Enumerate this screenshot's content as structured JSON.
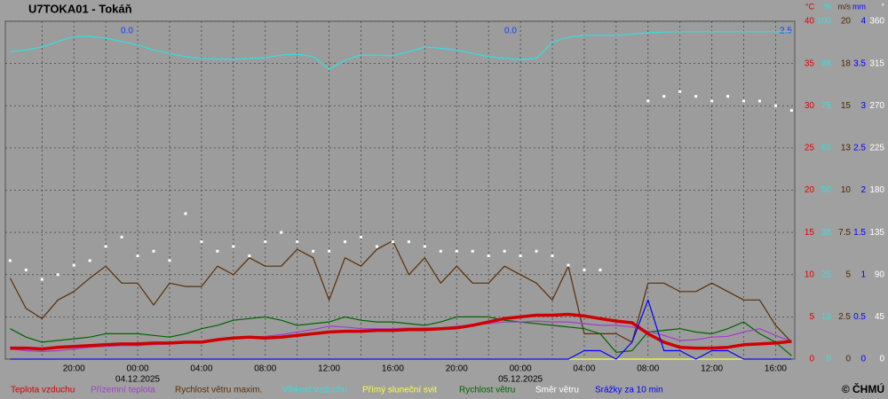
{
  "chart_data": {
    "type": "line",
    "title": "U7TOKA01 - Tokáň",
    "credit": "© ČHMÚ",
    "annotations": [
      "0.0",
      "0.0",
      "2.5"
    ],
    "xlim": [
      -8.3,
      41.2
    ],
    "xticks": [
      {
        "value": -4,
        "label": "20:00"
      },
      {
        "value": 0,
        "label": "00:00"
      },
      {
        "value": 4,
        "label": "04:00"
      },
      {
        "value": 8,
        "label": "08:00"
      },
      {
        "value": 12,
        "label": "12:00"
      },
      {
        "value": 16,
        "label": "16:00"
      },
      {
        "value": 20,
        "label": "20:00"
      },
      {
        "value": 24,
        "label": "00:00"
      },
      {
        "value": 28,
        "label": "04:00"
      },
      {
        "value": 32,
        "label": "08:00"
      },
      {
        "value": 36,
        "label": "12:00"
      },
      {
        "value": 40,
        "label": "16:00"
      }
    ],
    "xminorticks": [
      -6,
      -2,
      2,
      6,
      10,
      14,
      18,
      22,
      26,
      30,
      34,
      38
    ],
    "date_labels": [
      {
        "value": 0,
        "label": "04.12.2025"
      },
      {
        "value": 24,
        "label": "05.12.2025"
      }
    ],
    "grid": true,
    "axes": [
      {
        "unit": "°C",
        "color": "#e00000",
        "lim": [
          0,
          40
        ],
        "ticks": [
          0,
          5,
          10,
          15,
          20,
          25,
          30,
          35,
          40
        ]
      },
      {
        "unit": "%",
        "color": "#30e0e0",
        "lim": [
          0,
          100
        ],
        "ticks": [
          0,
          {
            "value": 12.5,
            "label": "13"
          },
          25,
          {
            "value": 37.5,
            "label": "38"
          },
          50,
          {
            "value": 62.5,
            "label": "63"
          },
          75,
          {
            "value": 87.5,
            "label": "88"
          },
          100
        ]
      },
      {
        "unit": "m/s",
        "color": "#4a2600",
        "lim": [
          0,
          20
        ],
        "ticks": [
          0,
          2.5,
          5,
          7.5,
          10,
          {
            "value": 12.5,
            "label": "13"
          },
          15,
          {
            "value": 17.5,
            "label": "18"
          },
          20
        ]
      },
      {
        "unit": "mm",
        "color": "#0000ff",
        "lim": [
          0,
          4
        ],
        "ticks": [
          0,
          0.5,
          1,
          1.5,
          2,
          2.5,
          3,
          3.5,
          4
        ]
      },
      {
        "unit": "°",
        "color": "#ffffff",
        "lim": [
          0,
          360
        ],
        "ticks": [
          0,
          45,
          90,
          135,
          180,
          225,
          270,
          315,
          360
        ]
      }
    ],
    "x": [
      -8,
      -7,
      -6,
      -5,
      -4,
      -3,
      -2,
      -1,
      0,
      1,
      2,
      3,
      4,
      5,
      6,
      7,
      8,
      9,
      10,
      11,
      12,
      13,
      14,
      15,
      16,
      17,
      18,
      19,
      20,
      21,
      22,
      23,
      24,
      25,
      26,
      27,
      28,
      29,
      30,
      31,
      32,
      33,
      34,
      35,
      36,
      37,
      38,
      39,
      40,
      41
    ],
    "series": [
      {
        "name": "Teplota vzduchu",
        "color": "#d00000",
        "axis": 0,
        "style": "thick",
        "values": [
          1.3,
          1.3,
          1.2,
          1.4,
          1.5,
          1.6,
          1.7,
          1.8,
          1.8,
          1.9,
          1.9,
          2.0,
          2.0,
          2.3,
          2.5,
          2.6,
          2.5,
          2.6,
          2.8,
          3.0,
          3.2,
          3.3,
          3.3,
          3.4,
          3.4,
          3.5,
          3.5,
          3.6,
          3.7,
          4.0,
          4.4,
          4.8,
          5.0,
          5.2,
          5.2,
          5.3,
          5.1,
          4.8,
          4.5,
          4.3,
          3.0,
          2.0,
          1.4,
          1.3,
          1.3,
          1.4,
          1.7,
          1.8,
          1.9,
          2.1
        ]
      },
      {
        "name": "Přízemní teplota",
        "color": "#a040c8",
        "axis": 0,
        "style": "line",
        "values": [
          1.2,
          1.0,
          0.9,
          1.0,
          1.2,
          1.4,
          1.5,
          1.6,
          1.6,
          1.7,
          1.8,
          1.9,
          2.0,
          2.3,
          2.5,
          2.6,
          2.7,
          2.9,
          3.2,
          3.5,
          3.9,
          3.8,
          3.6,
          3.6,
          3.6,
          3.7,
          3.7,
          3.7,
          3.9,
          4.0,
          4.2,
          4.4,
          4.4,
          4.5,
          4.4,
          4.4,
          4.2,
          4.0,
          4.0,
          3.8,
          3.3,
          2.8,
          2.2,
          2.3,
          2.6,
          2.7,
          3.2,
          3.6,
          2.8,
          2.1
        ]
      },
      {
        "name": "Rychlost větru maxim.",
        "color": "#5a2e08",
        "axis": 2,
        "style": "line",
        "values": [
          4.8,
          3.0,
          2.4,
          3.5,
          4.0,
          4.8,
          5.5,
          4.5,
          4.5,
          3.2,
          4.5,
          4.3,
          4.3,
          5.5,
          5.0,
          6.0,
          5.5,
          5.5,
          6.5,
          6.0,
          3.5,
          6.0,
          5.5,
          6.5,
          7.0,
          5.0,
          6.0,
          4.5,
          5.5,
          4.5,
          4.5,
          5.5,
          5.0,
          4.5,
          3.5,
          5.5,
          1.5,
          1.5,
          1.5,
          1.0,
          4.5,
          4.5,
          4.0,
          4.0,
          4.5,
          4.0,
          3.5,
          3.5,
          2.0,
          1.0
        ]
      },
      {
        "name": "Vlhkost vzduchu",
        "color": "#30e0e0",
        "axis": 1,
        "style": "line",
        "values": [
          91,
          91.5,
          92.4,
          94,
          95.5,
          95.5,
          95,
          94,
          93,
          91.5,
          90.5,
          89.5,
          89,
          88.8,
          88.7,
          89,
          89.2,
          90,
          90.3,
          89.5,
          85.8,
          88.5,
          90,
          90,
          89.8,
          91,
          92.4,
          92,
          91.5,
          90.5,
          89.5,
          89,
          88.7,
          89,
          93.8,
          95.3,
          95.8,
          95.8,
          95.8,
          96.2,
          96.6,
          96.8,
          96.9,
          96.9,
          96.9,
          96.9,
          96.9,
          96.9,
          96.9,
          96.9
        ]
      },
      {
        "name": "Přímý sluneční svit",
        "color": "#ffff40",
        "axis": 3,
        "style": "line",
        "values": [
          0,
          0,
          0,
          0,
          0,
          0,
          0,
          0,
          0,
          0,
          0,
          0,
          0,
          0,
          0,
          0,
          0,
          0,
          0,
          0,
          0,
          0,
          0,
          0,
          0,
          0,
          0,
          0,
          0,
          0,
          0,
          0,
          0,
          0,
          0,
          0,
          0,
          0,
          0,
          0,
          0,
          0,
          0,
          0,
          0,
          0,
          0,
          0,
          0,
          0
        ]
      },
      {
        "name": "Rychlost větru",
        "color": "#006400",
        "axis": 2,
        "style": "line",
        "values": [
          1.8,
          1.3,
          1.0,
          1.1,
          1.2,
          1.3,
          1.5,
          1.5,
          1.5,
          1.4,
          1.3,
          1.5,
          1.8,
          2.0,
          2.3,
          2.4,
          2.5,
          2.3,
          2.0,
          2.1,
          2.2,
          2.5,
          2.3,
          2.2,
          2.2,
          2.1,
          2.0,
          2.2,
          2.5,
          2.5,
          2.5,
          2.3,
          2.2,
          2.1,
          2.0,
          1.9,
          1.8,
          1.5,
          0.4,
          0.5,
          1.6,
          1.7,
          1.8,
          1.6,
          1.5,
          1.8,
          2.2,
          1.5,
          1.0,
          0.2
        ]
      },
      {
        "name": "Směr větru",
        "color": "#ffffff",
        "axis": 4,
        "style": "dots",
        "values": [
          105,
          95,
          85,
          90,
          100,
          105,
          120,
          130,
          110,
          115,
          105,
          155,
          125,
          115,
          120,
          110,
          125,
          135,
          125,
          115,
          115,
          125,
          130,
          120,
          125,
          125,
          120,
          115,
          115,
          115,
          110,
          115,
          110,
          115,
          110,
          100,
          95,
          95,
          null,
          null,
          275,
          280,
          285,
          280,
          275,
          280,
          275,
          275,
          270,
          265
        ]
      },
      {
        "name": "Srážky za 10 min",
        "color": "#0000ff",
        "axis": 3,
        "style": "line",
        "values": [
          0,
          0,
          0,
          0,
          0,
          0,
          0,
          0,
          0,
          0,
          0,
          0,
          0,
          0,
          0,
          0,
          0,
          0,
          0,
          0,
          0,
          0,
          0,
          0,
          0,
          0,
          0,
          0,
          0,
          0,
          0,
          0,
          0,
          0,
          0,
          0,
          0.1,
          0.1,
          0,
          0.2,
          0.7,
          0.1,
          0.1,
          0,
          0.1,
          0.1,
          0,
          0,
          0,
          0
        ]
      }
    ]
  }
}
